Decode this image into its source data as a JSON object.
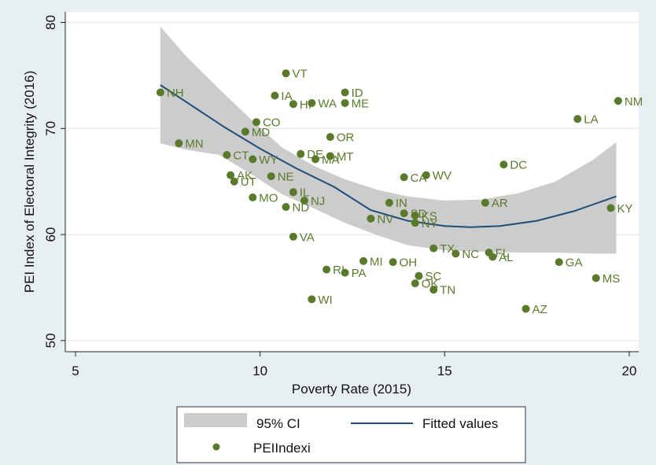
{
  "chart_data": {
    "type": "scatter",
    "title": "",
    "xlabel": "Poverty Rate (2015)",
    "ylabel": "PEI Index of Electoral Integrity (2016)",
    "xlim": [
      4.7,
      20.3
    ],
    "ylim": [
      48.7,
      81
    ],
    "xticks": [
      5,
      10,
      15,
      20
    ],
    "yticks": [
      50,
      60,
      70,
      80
    ],
    "grid": "horizontal",
    "legend_position": "bottom",
    "colors": {
      "points": "#5a7a2b",
      "fitted": "#1f4e79",
      "ci": "#cccccc",
      "background": "#e8eff2",
      "plot_background": "#ffffff",
      "grid": "#e6eef2"
    },
    "legend": [
      {
        "label": "95% CI",
        "kind": "area"
      },
      {
        "label": "Fitted values",
        "kind": "line"
      },
      {
        "label": "PEIIndexi",
        "kind": "marker"
      }
    ],
    "points": [
      {
        "label": "NH",
        "x": 7.3,
        "y": 73.4
      },
      {
        "label": "MN",
        "x": 7.8,
        "y": 68.6
      },
      {
        "label": "VT",
        "x": 10.7,
        "y": 75.2
      },
      {
        "label": "IA",
        "x": 10.4,
        "y": 73.1
      },
      {
        "label": "HI",
        "x": 10.9,
        "y": 72.3
      },
      {
        "label": "WA",
        "x": 11.4,
        "y": 72.4
      },
      {
        "label": "ID",
        "x": 12.3,
        "y": 73.4
      },
      {
        "label": "ME",
        "x": 12.3,
        "y": 72.4
      },
      {
        "label": "CO",
        "x": 9.9,
        "y": 70.6
      },
      {
        "label": "MD",
        "x": 9.6,
        "y": 69.7
      },
      {
        "label": "OR",
        "x": 11.9,
        "y": 69.2
      },
      {
        "label": "CT",
        "x": 9.1,
        "y": 67.5
      },
      {
        "label": "WY",
        "x": 9.8,
        "y": 67.1
      },
      {
        "label": "DE",
        "x": 11.1,
        "y": 67.6
      },
      {
        "label": "MA",
        "x": 11.5,
        "y": 67.1
      },
      {
        "label": "MT",
        "x": 11.9,
        "y": 67.4
      },
      {
        "label": "AK",
        "x": 9.2,
        "y": 65.6
      },
      {
        "label": "UT",
        "x": 9.3,
        "y": 65.0
      },
      {
        "label": "NE",
        "x": 10.3,
        "y": 65.5
      },
      {
        "label": "MO",
        "x": 9.8,
        "y": 63.5
      },
      {
        "label": "IL",
        "x": 10.9,
        "y": 64.0
      },
      {
        "label": "NJ",
        "x": 11.2,
        "y": 63.2
      },
      {
        "label": "ND",
        "x": 10.7,
        "y": 62.6
      },
      {
        "label": "VA",
        "x": 10.9,
        "y": 59.8
      },
      {
        "label": "CA",
        "x": 13.9,
        "y": 65.4
      },
      {
        "label": "WV",
        "x": 14.5,
        "y": 65.6
      },
      {
        "label": "DC",
        "x": 16.6,
        "y": 66.6
      },
      {
        "label": "IN",
        "x": 13.5,
        "y": 63.0
      },
      {
        "label": "AR",
        "x": 16.1,
        "y": 63.0
      },
      {
        "label": "NV",
        "x": 13.0,
        "y": 61.5
      },
      {
        "label": "SD",
        "x": 13.9,
        "y": 62.0
      },
      {
        "label": "KS",
        "x": 14.2,
        "y": 61.8
      },
      {
        "label": "NY",
        "x": 14.2,
        "y": 61.1
      },
      {
        "label": "TX",
        "x": 14.7,
        "y": 58.7
      },
      {
        "label": "NC",
        "x": 15.3,
        "y": 58.2
      },
      {
        "label": "FL",
        "x": 16.2,
        "y": 58.3
      },
      {
        "label": "AL",
        "x": 16.3,
        "y": 57.9
      },
      {
        "label": "MI",
        "x": 12.8,
        "y": 57.5
      },
      {
        "label": "OH",
        "x": 13.6,
        "y": 57.4
      },
      {
        "label": "RI",
        "x": 11.8,
        "y": 56.7
      },
      {
        "label": "PA",
        "x": 12.3,
        "y": 56.4
      },
      {
        "label": "SC",
        "x": 14.3,
        "y": 56.1
      },
      {
        "label": "OK",
        "x": 14.2,
        "y": 55.4
      },
      {
        "label": "TN",
        "x": 14.7,
        "y": 54.8
      },
      {
        "label": "WI",
        "x": 11.4,
        "y": 53.9
      },
      {
        "label": "AZ",
        "x": 17.2,
        "y": 53.0
      },
      {
        "label": "GA",
        "x": 18.1,
        "y": 57.4
      },
      {
        "label": "MS",
        "x": 19.1,
        "y": 55.9
      },
      {
        "label": "KY",
        "x": 19.5,
        "y": 62.5
      },
      {
        "label": "LA",
        "x": 18.6,
        "y": 70.9
      },
      {
        "label": "NM",
        "x": 19.7,
        "y": 72.6
      }
    ],
    "fitted": {
      "x": [
        7.3,
        8.0,
        9.0,
        10.0,
        11.0,
        12.0,
        13.0,
        14.0,
        15.0,
        15.7,
        16.5,
        17.5,
        18.5,
        19.65
      ],
      "y": [
        74.1,
        72.5,
        70.2,
        68.1,
        66.2,
        64.5,
        62.3,
        61.3,
        60.8,
        60.7,
        60.8,
        61.3,
        62.2,
        63.6
      ]
    },
    "ci": {
      "x": [
        7.3,
        8.0,
        8.9,
        9.8,
        10.6,
        11.5,
        12.3,
        13.2,
        14.0,
        15.0,
        16.0,
        17.0,
        18.0,
        19.0,
        19.65
      ],
      "upper": [
        79.6,
        76.8,
        73.7,
        70.7,
        68.2,
        66.4,
        65.2,
        64.2,
        63.6,
        63.2,
        63.3,
        63.9,
        65.0,
        67.0,
        68.7
      ],
      "lower": [
        68.6,
        68.0,
        67.5,
        65.6,
        63.8,
        62.4,
        61.1,
        59.9,
        59.0,
        58.5,
        58.4,
        58.3,
        58.3,
        58.2,
        58.2
      ]
    }
  }
}
